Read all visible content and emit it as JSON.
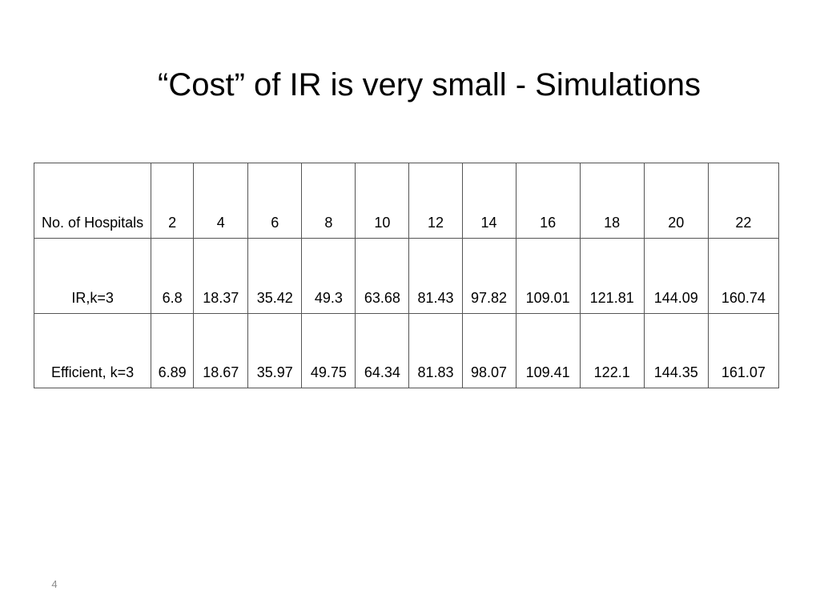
{
  "slide": {
    "title": "“Cost” of IR is very small - Simulations",
    "page_number": "4"
  },
  "table": {
    "rows": [
      {
        "label": "No. of Hospitals",
        "cells": [
          "2",
          "4",
          "6",
          "8",
          "10",
          "12",
          "14",
          "16",
          "18",
          "20",
          "22"
        ]
      },
      {
        "label": "IR,k=3",
        "cells": [
          "6.8",
          "18.37",
          "35.42",
          "49.3",
          "63.68",
          "81.43",
          "97.82",
          "109.01",
          "121.81",
          "144.09",
          "160.74"
        ]
      },
      {
        "label": "Efficient, k=3",
        "cells": [
          "6.89",
          "18.67",
          "35.97",
          "49.75",
          "64.34",
          "81.83",
          "98.07",
          "109.41",
          "122.1",
          "144.35",
          "161.07"
        ]
      }
    ]
  }
}
